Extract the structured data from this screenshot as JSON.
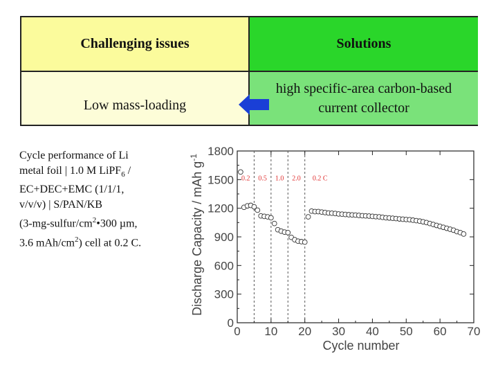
{
  "table": {
    "header_left": "Challenging issues",
    "header_right": "Solutions",
    "issue": "Low mass-loading",
    "solution": "high specific-area carbon-based current collector"
  },
  "description": {
    "line1": "Cycle performance of Li",
    "line2_prefix": "metal foil | 1.0 M LiPF",
    "line2_sub": "6",
    "line2_suffix": " /",
    "line3": "EC+DEC+EMC (1/1/1,",
    "line4": "v/v/v) | S/PAN/KB",
    "line5_prefix": "(3-mg-sulfur/cm",
    "line5_sup": "2",
    "line5_suffix": "•300 µm,",
    "line6_prefix": "3.6 mAh/cm",
    "line6_sup": "2",
    "line6_suffix": ") cell at 0.2 C."
  },
  "colors": {
    "header_left_bg": "#fbfb9c",
    "header_right_bg": "#2ad62a",
    "issue_bg": "#fdfdd8",
    "solution_bg": "#7ae27a",
    "arrow": "#1a3fd6",
    "rate_label": "#e03030"
  },
  "arrow_icon": "left-arrow-icon",
  "chart_data": {
    "type": "scatter",
    "xlabel": "Cycle number",
    "ylabel": "Discharge Capacity / mAh g",
    "ylabel_sup": "-1",
    "xlim": [
      0,
      70
    ],
    "ylim": [
      0,
      1800
    ],
    "xticks": [
      0,
      10,
      20,
      30,
      40,
      50,
      60,
      70
    ],
    "yticks": [
      0,
      300,
      600,
      900,
      1200,
      1500,
      1800
    ],
    "grid": false,
    "rate_dividers": [
      5,
      10,
      15,
      20
    ],
    "rate_labels": [
      {
        "text": "0.2",
        "x": 2.5
      },
      {
        "text": "0.5",
        "x": 7.5
      },
      {
        "text": "1.0",
        "x": 12.5
      },
      {
        "text": "2.0",
        "x": 17.5
      },
      {
        "text": "0.2 C",
        "x": 24.5
      }
    ],
    "rate_label_y": 1520,
    "series": [
      {
        "x": [
          1,
          2,
          3,
          4,
          5,
          6,
          7,
          8,
          9,
          10,
          11,
          12,
          13,
          14,
          15,
          16,
          17,
          18,
          19,
          20,
          21,
          22,
          23,
          24,
          25,
          26,
          27,
          28,
          29,
          30,
          31,
          32,
          33,
          34,
          35,
          36,
          37,
          38,
          39,
          40,
          41,
          42,
          43,
          44,
          45,
          46,
          47,
          48,
          49,
          50,
          51,
          52,
          53,
          54,
          55,
          56,
          57,
          58,
          59,
          60,
          61,
          62,
          63,
          64,
          65,
          66,
          67
        ],
        "y": [
          1580,
          1210,
          1225,
          1230,
          1215,
          1180,
          1120,
          1115,
          1110,
          1100,
          1040,
          975,
          960,
          950,
          945,
          895,
          870,
          855,
          850,
          845,
          1110,
          1170,
          1165,
          1165,
          1160,
          1155,
          1150,
          1148,
          1145,
          1140,
          1138,
          1135,
          1132,
          1130,
          1128,
          1125,
          1122,
          1120,
          1118,
          1115,
          1112,
          1110,
          1105,
          1100,
          1098,
          1095,
          1092,
          1088,
          1085,
          1082,
          1080,
          1075,
          1070,
          1065,
          1058,
          1050,
          1040,
          1030,
          1020,
          1010,
          1000,
          990,
          980,
          970,
          955,
          945,
          930
        ]
      }
    ]
  }
}
